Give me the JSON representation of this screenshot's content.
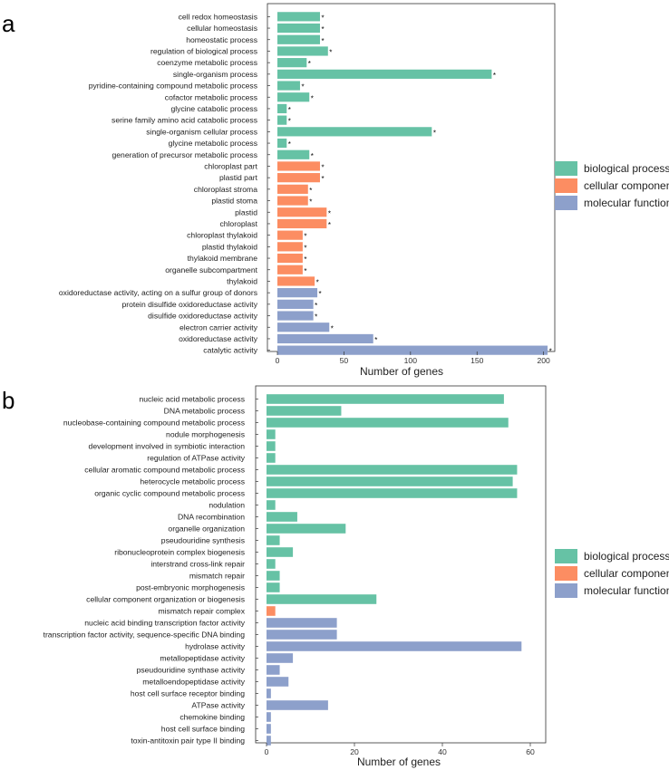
{
  "colors": {
    "biological process": "#66c2a5",
    "cellular component": "#fc8d62",
    "molecular function": "#8da0cb"
  },
  "chart_data": [
    {
      "panel": "a",
      "type": "bar",
      "orientation": "horizontal",
      "xlabel": "Number of genes",
      "xlim": [
        0,
        205
      ],
      "xticks": [
        0,
        50,
        100,
        150,
        200
      ],
      "grid": false,
      "legend": {
        "position": "right",
        "entries": [
          "biological process",
          "cellular component",
          "molecular function"
        ]
      },
      "categories": [
        "cell redox homeostasis",
        "cellular homeostasis",
        "homeostatic process",
        "regulation of biological process",
        "coenzyme metabolic process",
        "single-organism process",
        "pyridine-containing compound metabolic process",
        "cofactor metabolic process",
        "glycine catabolic process",
        "serine family amino acid catabolic process",
        "single-organism cellular process",
        "glycine metabolic process",
        "generation of precursor metabolic process",
        "chloroplast part",
        "plastid part",
        "chloroplast stroma",
        "plastid stoma",
        "plastid",
        "chloroplast",
        "chloroplast thylakoid",
        "plastid thylakoid",
        "thylakoid membrane",
        "organelle subcompartment",
        "thylakoid",
        "oxidoreductase activity, acting on a sulfur group of donors",
        "protein disulfide oxidoreductase activity",
        "disulfide oxidoreductase activity",
        "electron carrier activity",
        "oxidoreductase activity",
        "catalytic activity"
      ],
      "values": [
        32,
        32,
        32,
        38,
        22,
        161,
        17,
        24,
        7,
        7,
        116,
        7,
        24,
        32,
        32,
        23,
        23,
        37,
        37,
        19,
        19,
        19,
        19,
        28,
        30,
        27,
        27,
        39,
        72,
        203
      ],
      "groups": [
        "biological process",
        "biological process",
        "biological process",
        "biological process",
        "biological process",
        "biological process",
        "biological process",
        "biological process",
        "biological process",
        "biological process",
        "biological process",
        "biological process",
        "biological process",
        "cellular component",
        "cellular component",
        "cellular component",
        "cellular component",
        "cellular component",
        "cellular component",
        "cellular component",
        "cellular component",
        "cellular component",
        "cellular component",
        "cellular component",
        "molecular function",
        "molecular function",
        "molecular function",
        "molecular function",
        "molecular function",
        "molecular function"
      ],
      "significance_marker": "*"
    },
    {
      "panel": "b",
      "type": "bar",
      "orientation": "horizontal",
      "xlabel": "Number of genes",
      "xlim": [
        0,
        60
      ],
      "xticks": [
        0,
        20,
        40,
        60
      ],
      "grid": false,
      "legend": {
        "position": "right",
        "entries": [
          "biological process",
          "cellular component",
          "molecular function"
        ]
      },
      "categories": [
        "nucleic acid metabolic process",
        "DNA metabolic process",
        "nucleobase-containing compound metabolic process",
        "nodule morphogenesis",
        "development involved in symbiotic interaction",
        "regulation of ATPase activity",
        "cellular aromatic compound metabolic process",
        "heterocycle metabolic process",
        "organic cyclic compound metabolic process",
        "nodulation",
        "DNA recombination",
        "organelle organization",
        "pseudouridine synthesis",
        "ribonucleoprotein complex biogenesis",
        "interstrand cross-link repair",
        "mismatch repair",
        "post-embryonic morphogenesis",
        "cellular component organization or biogenesis",
        "mismatch repair complex",
        "nucleic acid binding transcription factor activity",
        "transcription factor activity, sequence-specific DNA binding",
        "hydrolase activity",
        "metallopeptidase activity",
        "pseudouridine synthase activity",
        "metalloendopeptidase activity",
        "host cell surface receptor binding",
        "ATPase activity",
        "chemokine binding",
        "host cell surface binding",
        "toxin-antitoxin pair type II binding"
      ],
      "values": [
        54,
        17,
        55,
        2,
        2,
        2,
        57,
        56,
        57,
        2,
        7,
        18,
        3,
        6,
        2,
        3,
        3,
        25,
        2,
        16,
        16,
        58,
        6,
        3,
        5,
        1,
        14,
        1,
        1,
        1
      ],
      "groups": [
        "biological process",
        "biological process",
        "biological process",
        "biological process",
        "biological process",
        "biological process",
        "biological process",
        "biological process",
        "biological process",
        "biological process",
        "biological process",
        "biological process",
        "biological process",
        "biological process",
        "biological process",
        "biological process",
        "biological process",
        "biological process",
        "cellular component",
        "molecular function",
        "molecular function",
        "molecular function",
        "molecular function",
        "molecular function",
        "molecular function",
        "molecular function",
        "molecular function",
        "molecular function",
        "molecular function",
        "molecular function"
      ]
    }
  ]
}
